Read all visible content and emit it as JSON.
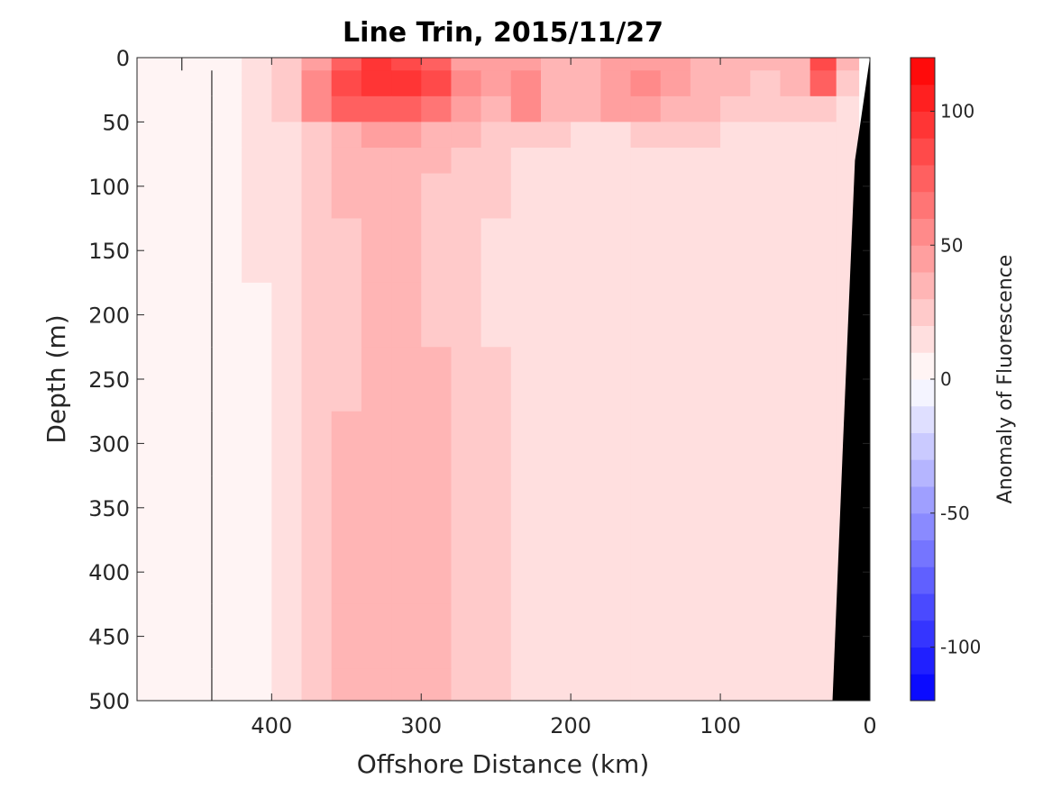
{
  "chart_data": {
    "type": "heatmap",
    "title": "Line Trin, 2015/11/27",
    "xlabel": "Offshore Distance (km)",
    "ylabel": "Depth (m)",
    "colorbar_label": "Anomaly of Fluorescence",
    "xlim": [
      490,
      0
    ],
    "x_reversed": true,
    "ylim": [
      0,
      500
    ],
    "y_reversed": true,
    "xticks": [
      400,
      300,
      200,
      100,
      0
    ],
    "yticks": [
      0,
      50,
      100,
      150,
      200,
      250,
      300,
      350,
      400,
      450,
      500
    ],
    "colorbar_range": [
      -120,
      120
    ],
    "colorbar_ticks": [
      100,
      50,
      0,
      -50,
      -100
    ],
    "colorbar_levels": 24,
    "colormap": {
      "low": "#0000ff",
      "mid": "#ffffff",
      "high": "#ff0000"
    },
    "bottom_color": "#000000",
    "grid": false,
    "x": [
      490,
      470,
      450,
      430,
      410,
      390,
      370,
      350,
      330,
      310,
      290,
      270,
      250,
      230,
      210,
      190,
      170,
      150,
      130,
      110,
      90,
      70,
      50,
      30,
      15
    ],
    "y": [
      0,
      20,
      40,
      60,
      80,
      100,
      150,
      200,
      250,
      300,
      350,
      400,
      450,
      500
    ],
    "z": [
      [
        0,
        0,
        2,
        8,
        15,
        25,
        45,
        70,
        90,
        85,
        75,
        45,
        40,
        45,
        30,
        35,
        40,
        45,
        40,
        35,
        30,
        30,
        35,
        85,
        30
      ],
      [
        0,
        0,
        0,
        6,
        12,
        22,
        50,
        80,
        95,
        90,
        80,
        50,
        40,
        55,
        35,
        38,
        45,
        50,
        45,
        38,
        30,
        28,
        30,
        70,
        20
      ],
      [
        0,
        0,
        0,
        5,
        12,
        22,
        50,
        70,
        75,
        70,
        65,
        45,
        38,
        50,
        38,
        35,
        40,
        45,
        38,
        32,
        28,
        25,
        22,
        25,
        15
      ],
      [
        0,
        0,
        0,
        3,
        10,
        18,
        28,
        35,
        40,
        40,
        38,
        32,
        28,
        28,
        22,
        18,
        18,
        20,
        22,
        20,
        18,
        18,
        16,
        16,
        15
      ],
      [
        0,
        0,
        0,
        3,
        10,
        15,
        22,
        30,
        32,
        32,
        30,
        24,
        20,
        18,
        15,
        13,
        14,
        15,
        14,
        14,
        15,
        13,
        12,
        13,
        12
      ],
      [
        0,
        0,
        0,
        3,
        10,
        15,
        22,
        30,
        32,
        32,
        28,
        22,
        20,
        17,
        14,
        12,
        12,
        13,
        14,
        12,
        13,
        12,
        12,
        12,
        12
      ],
      [
        0,
        0,
        0,
        2,
        10,
        15,
        22,
        28,
        32,
        32,
        28,
        22,
        18,
        16,
        13,
        11,
        12,
        18,
        12,
        12,
        11,
        11,
        12,
        13,
        12
      ],
      [
        0,
        0,
        0,
        2,
        9,
        15,
        22,
        28,
        32,
        32,
        28,
        22,
        18,
        16,
        13,
        11,
        11,
        11,
        12,
        11,
        11,
        11,
        12,
        13,
        12
      ],
      [
        0,
        0,
        0,
        2,
        9,
        15,
        22,
        28,
        32,
        32,
        30,
        26,
        22,
        18,
        13,
        11,
        11,
        12,
        11,
        11,
        11,
        11,
        12,
        14,
        13
      ],
      [
        0,
        0,
        0,
        2,
        9,
        15,
        22,
        30,
        33,
        34,
        30,
        26,
        22,
        18,
        13,
        12,
        14,
        16,
        14,
        12,
        12,
        11,
        12,
        14,
        13
      ],
      [
        0,
        0,
        0,
        2,
        9,
        15,
        22,
        30,
        33,
        34,
        30,
        26,
        22,
        18,
        13,
        12,
        12,
        13,
        13,
        12,
        12,
        12,
        12,
        14,
        13
      ],
      [
        0,
        0,
        0,
        2,
        9,
        15,
        22,
        30,
        34,
        34,
        30,
        26,
        22,
        18,
        13,
        12,
        12,
        12,
        12,
        12,
        12,
        12,
        12,
        14,
        13
      ],
      [
        0,
        0,
        0,
        2,
        9,
        15,
        22,
        30,
        34,
        34,
        30,
        26,
        22,
        18,
        13,
        12,
        12,
        12,
        12,
        12,
        12,
        12,
        12,
        14,
        13
      ],
      [
        0,
        0,
        0,
        2,
        9,
        15,
        22,
        30,
        34,
        34,
        30,
        26,
        22,
        18,
        13,
        12,
        12,
        12,
        12,
        12,
        12,
        12,
        12,
        14,
        13
      ]
    ],
    "bathymetry": {
      "x": [
        25,
        18,
        10,
        0
      ],
      "y": [
        500,
        300,
        80,
        0
      ]
    }
  }
}
